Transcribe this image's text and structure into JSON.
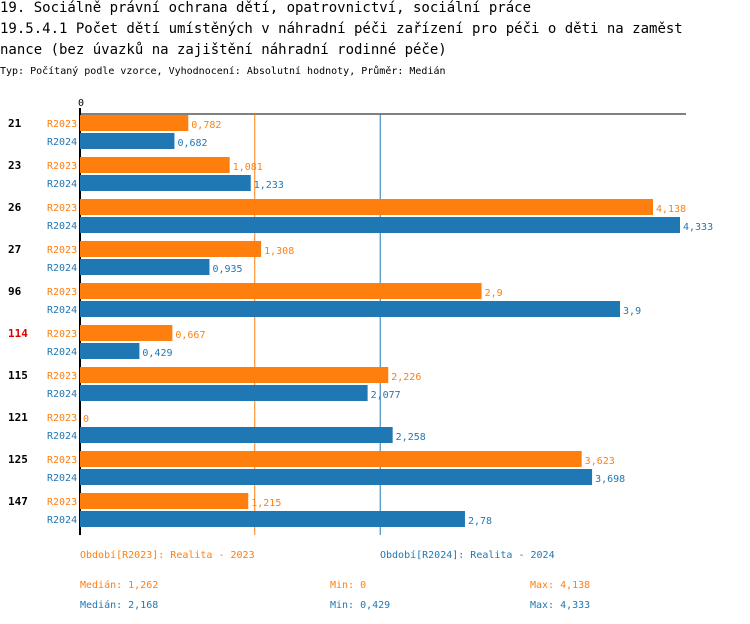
{
  "titles": {
    "line1": "19. Sociálně právní ochrana dětí, opatrovnictví, sociální práce",
    "line2": "19.5.4.1 Počet dětí umístěných v náhradní péči zařízení pro péči o děti na zaměst",
    "line3": "nance (bez úvazků na zajištění náhradní rodinné péče)",
    "subtitle": "Typ: Počítaný podle vzorce, Vyhodnocení: Absolutní hodnoty, Průměr: Medián"
  },
  "chart_data": {
    "type": "bar",
    "orientation": "horizontal",
    "axis_zero_label": "0",
    "xlim": [
      0,
      4.333
    ],
    "categories": [
      "21",
      "23",
      "26",
      "27",
      "96",
      "114",
      "115",
      "121",
      "125",
      "147"
    ],
    "highlighted_category": "114",
    "highlight_color": "#dd0000",
    "series": [
      {
        "name": "R2023",
        "color": "#ff7f0e",
        "values": [
          0.782,
          1.081,
          4.138,
          1.308,
          2.9,
          0.667,
          2.226,
          0,
          3.623,
          1.215
        ],
        "labels": [
          "0,782",
          "1,081",
          "4,138",
          "1,308",
          "2,9",
          "0,667",
          "2,226",
          "0",
          "3,623",
          "1,215"
        ],
        "median": 1.262
      },
      {
        "name": "R2024",
        "color": "#1f77b4",
        "values": [
          0.682,
          1.233,
          4.333,
          0.935,
          3.9,
          0.429,
          2.077,
          2.258,
          3.698,
          2.78
        ],
        "labels": [
          "0,682",
          "1,233",
          "4,333",
          "0,935",
          "3,9",
          "0,429",
          "2,077",
          "2,258",
          "3,698",
          "2,78"
        ],
        "median": 2.168
      }
    ]
  },
  "legend": {
    "s2023": "Období[R2023]: Realita - 2023",
    "s2024": "Období[R2024]: Realita - 2024"
  },
  "stats": {
    "s2023": {
      "median": "Medián: 1,262",
      "min": "Min: 0",
      "max": "Max: 4,138"
    },
    "s2024": {
      "median": "Medián: 2,168",
      "min": "Min: 0,429",
      "max": "Max: 4,333"
    }
  }
}
